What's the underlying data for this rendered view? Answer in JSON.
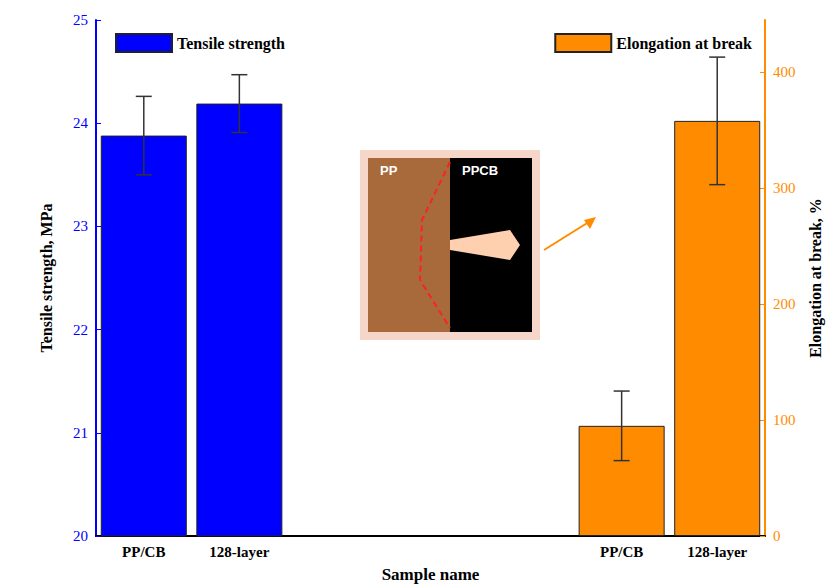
{
  "chart_data": {
    "type": "bar",
    "xlabel": "Sample name",
    "ylabel": "Tensile strength, MPa",
    "y2label": "Elongation at break, %",
    "categories": [
      "PP/CB",
      "128-layer",
      null,
      null,
      null,
      "PP/CB",
      "128-layer"
    ],
    "series": [
      {
        "name": "Tensile strength",
        "color": "#0000ff",
        "axis": "y",
        "values": [
          23.88,
          24.19,
          null,
          null,
          null,
          null,
          null
        ],
        "errors": [
          0.38,
          0.28,
          null,
          null,
          null,
          null,
          null
        ]
      },
      {
        "name": "Elongation at break",
        "color": "#ff8c00",
        "axis": "y2",
        "values": [
          null,
          null,
          null,
          null,
          null,
          95,
          358
        ],
        "errors": [
          null,
          null,
          null,
          null,
          null,
          30,
          55
        ]
      }
    ],
    "ylim": [
      20,
      25
    ],
    "yticks": [
      20,
      21,
      22,
      23,
      24,
      25
    ],
    "y2lim": [
      0,
      445
    ],
    "y2ticks": [
      0,
      100,
      200,
      300,
      400
    ],
    "legend": "top",
    "grid": false,
    "annotations": [
      "PP",
      "PPCB"
    ]
  }
}
